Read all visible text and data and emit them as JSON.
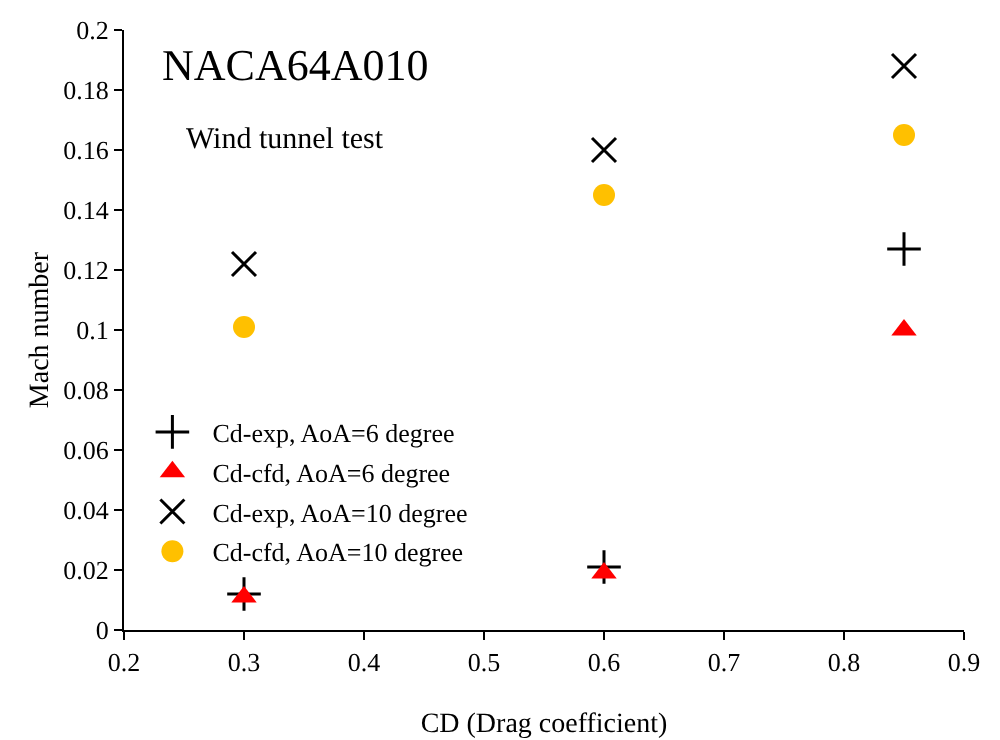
{
  "chart_data": {
    "type": "scatter",
    "title": "NACA64A010",
    "annotations": [
      "Wind tunnel test"
    ],
    "xlabel": "CD (Drag coefficient)",
    "ylabel": "Mach number",
    "x": [
      0.3,
      0.6,
      0.85
    ],
    "series": [
      {
        "name": "Cd-exp, AoA=6 degree",
        "color": "#000000",
        "marker": "cross",
        "values": [
          0.012,
          0.021,
          0.127
        ]
      },
      {
        "name": "Cd-cfd, AoA=6 degree",
        "color": "#ff0000",
        "marker": "triangle",
        "values": [
          0.011,
          0.019,
          0.1
        ]
      },
      {
        "name": "Cd-exp, AoA=10 degree",
        "color": "#000000",
        "marker": "x",
        "values": [
          0.122,
          0.16,
          0.188
        ]
      },
      {
        "name": "Cd-cfd, AoA=10 degree",
        "color": "#ffc000",
        "marker": "circle",
        "values": [
          0.101,
          0.145,
          0.165
        ]
      }
    ],
    "xlim": [
      0.2,
      0.9
    ],
    "xticks": [
      0.2,
      0.3,
      0.4,
      0.5,
      0.6,
      0.7,
      0.8,
      0.9
    ],
    "ylim": [
      0,
      0.2
    ],
    "yticks": [
      0,
      0.02,
      0.04,
      0.06,
      0.08,
      0.1,
      0.12,
      0.14,
      0.16,
      0.18,
      0.2
    ],
    "grid": false,
    "legend": "bottom left"
  }
}
